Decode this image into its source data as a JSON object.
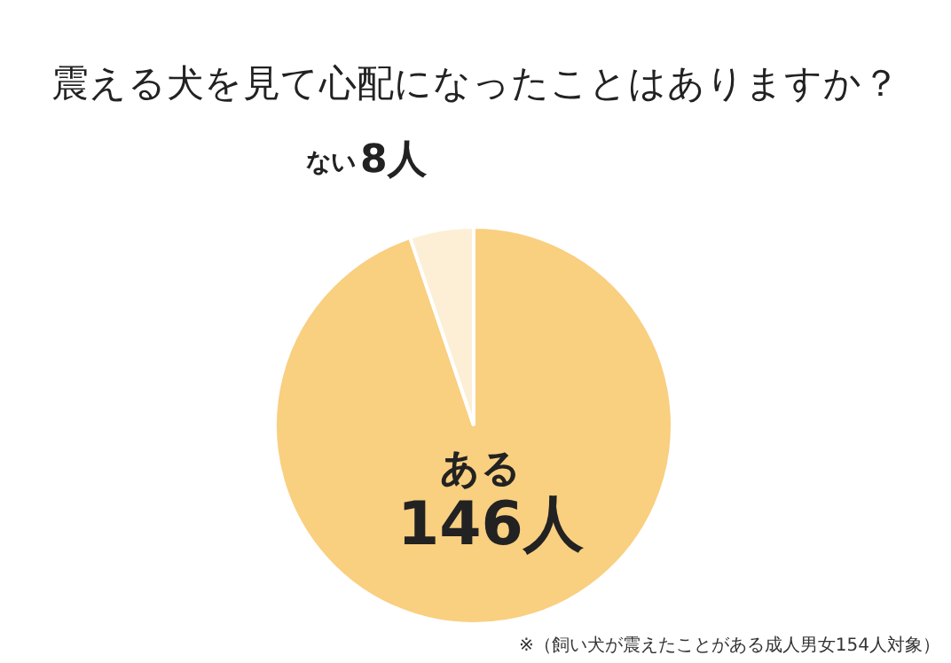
{
  "chart_data": {
    "type": "pie",
    "title": "震える犬を見て心配になったことはありますか？",
    "categories": [
      "ある",
      "ない"
    ],
    "values": [
      146,
      8
    ],
    "colors": [
      "#f9cf80",
      "#fdefd6"
    ],
    "value_labels": [
      "146人",
      "8人"
    ],
    "annotations": [
      "※（飼い犬が震えたことがある成人男女154人対象）"
    ]
  }
}
